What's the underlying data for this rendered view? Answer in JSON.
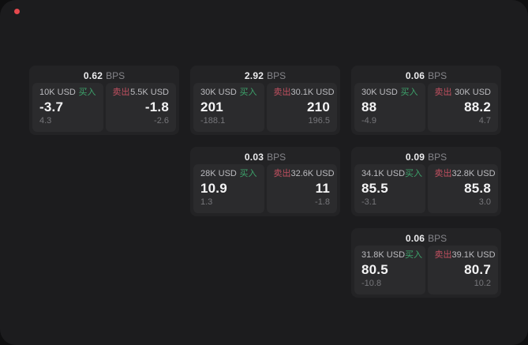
{
  "labels": {
    "bps": "BPS",
    "buy": "买入",
    "sell": "卖出"
  },
  "colors": {
    "buy_green": "#3da36b",
    "sell_red": "#c05060",
    "surface": "#1c1c1e",
    "card": "#232325",
    "panel": "#2b2b2d",
    "indicator_red": "#e5484d"
  },
  "cards": [
    {
      "row": 1,
      "col": 1,
      "bps": "0.62",
      "buy": {
        "amount": "10K USD",
        "value": "-3.7",
        "sub": "4.3"
      },
      "sell": {
        "amount": "5.5K USD",
        "value": "-1.8",
        "sub": "-2.6"
      }
    },
    {
      "row": 1,
      "col": 2,
      "bps": "2.92",
      "buy": {
        "amount": "30K USD",
        "value": "201",
        "sub": "-188.1"
      },
      "sell": {
        "amount": "30.1K USD",
        "value": "210",
        "sub": "196.5"
      }
    },
    {
      "row": 1,
      "col": 3,
      "bps": "0.06",
      "buy": {
        "amount": "30K USD",
        "value": "88",
        "sub": "-4.9"
      },
      "sell": {
        "amount": "30K USD",
        "value": "88.2",
        "sub": "4.7"
      }
    },
    {
      "row": 2,
      "col": 2,
      "bps": "0.03",
      "buy": {
        "amount": "28K USD",
        "value": "10.9",
        "sub": "1.3"
      },
      "sell": {
        "amount": "32.6K USD",
        "value": "11",
        "sub": "-1.8"
      }
    },
    {
      "row": 2,
      "col": 3,
      "bps": "0.09",
      "buy": {
        "amount": "34.1K USD",
        "value": "85.5",
        "sub": "-3.1"
      },
      "sell": {
        "amount": "32.8K USD",
        "value": "85.8",
        "sub": "3.0"
      }
    },
    {
      "row": 3,
      "col": 3,
      "bps": "0.06",
      "buy": {
        "amount": "31.8K USD",
        "value": "80.5",
        "sub": "-10.8"
      },
      "sell": {
        "amount": "39.1K USD",
        "value": "80.7",
        "sub": "10.2"
      }
    }
  ]
}
